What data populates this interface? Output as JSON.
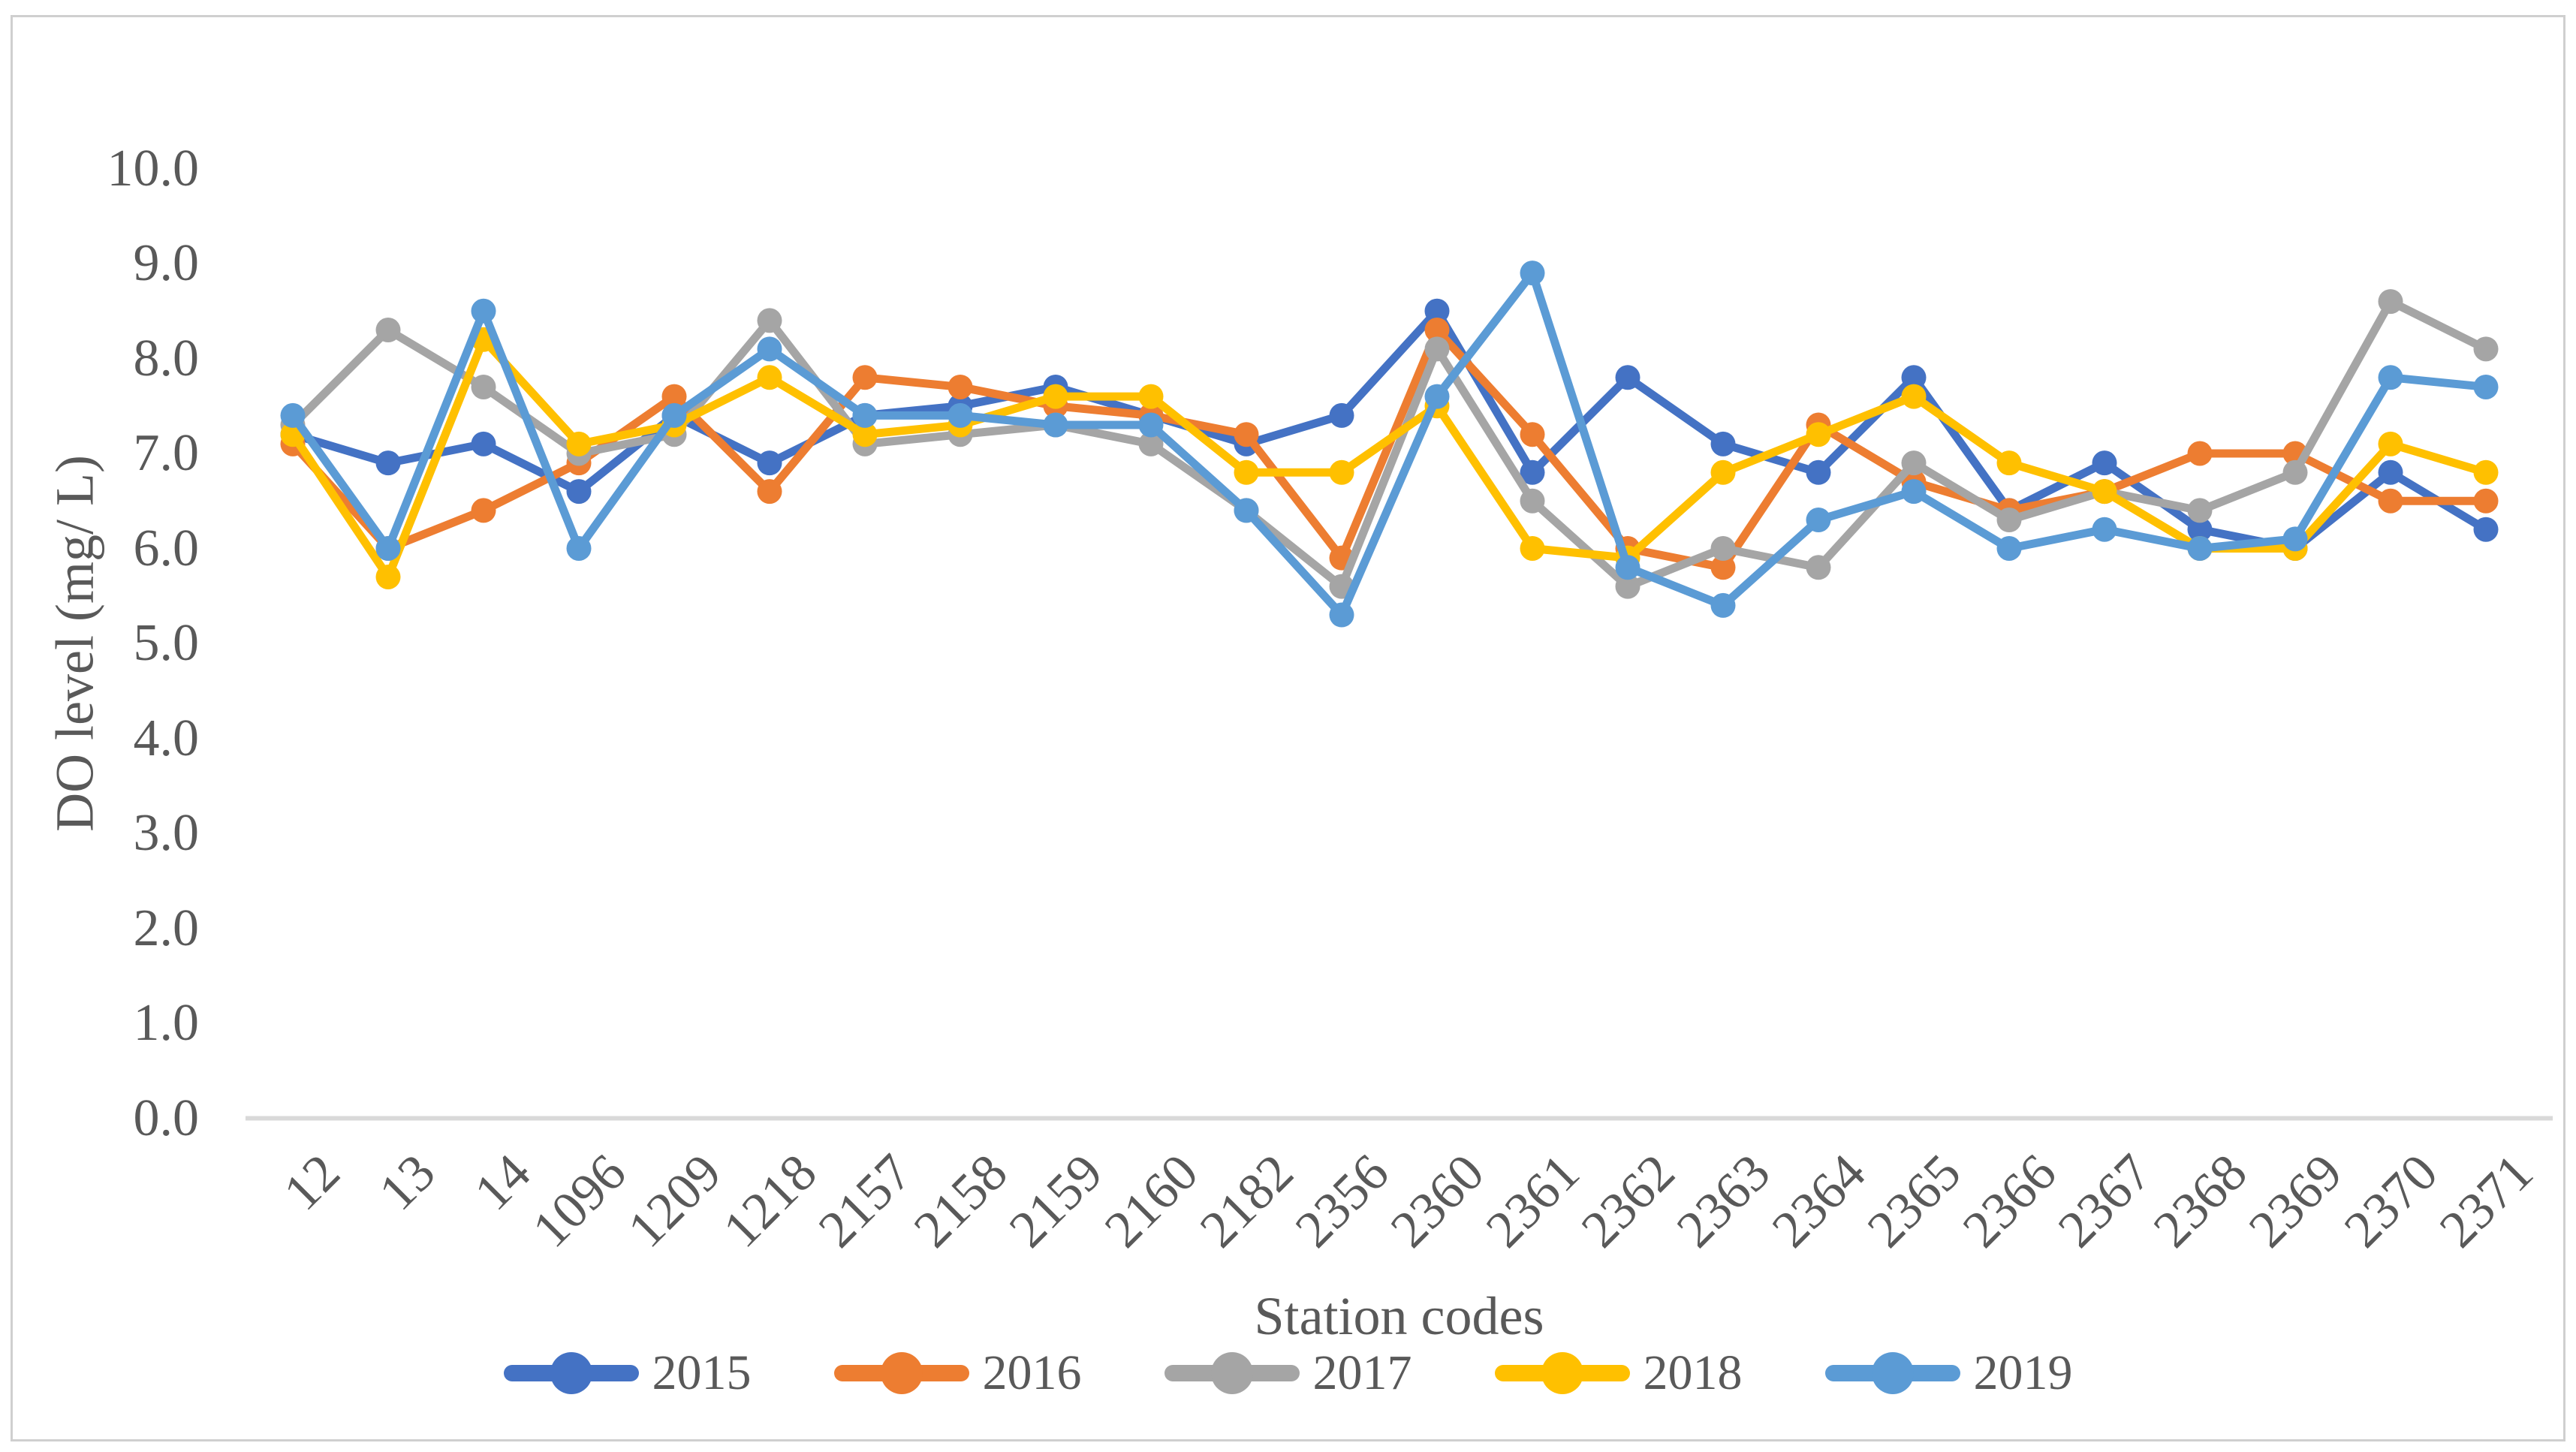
{
  "chart_data": {
    "type": "line",
    "title": "",
    "x_axis_title": "Station codes",
    "y_axis_title": "DO level (mg/ L)",
    "categories": [
      "12",
      "13",
      "14",
      "1096",
      "1209",
      "1218",
      "2157",
      "2158",
      "2159",
      "2160",
      "2182",
      "2356",
      "2360",
      "2361",
      "2362",
      "2363",
      "2364",
      "2365",
      "2366",
      "2367",
      "2368",
      "2369",
      "2370",
      "2371"
    ],
    "y_axis": {
      "min": 0,
      "max": 10,
      "step": 1,
      "tick_labels": [
        "0.0",
        "1.0",
        "2.0",
        "3.0",
        "4.0",
        "5.0",
        "6.0",
        "7.0",
        "8.0",
        "9.0",
        "10.0"
      ]
    },
    "grid": "off",
    "legend_position": "bottom",
    "series": [
      {
        "name": "2015",
        "color": "#4472C4",
        "values": [
          7.2,
          6.9,
          7.1,
          6.6,
          7.4,
          6.9,
          7.4,
          7.5,
          7.7,
          7.4,
          7.1,
          7.4,
          8.5,
          6.8,
          7.8,
          7.1,
          6.8,
          7.8,
          6.4,
          6.9,
          6.2,
          6.0,
          6.8,
          6.2
        ]
      },
      {
        "name": "2016",
        "color": "#ED7D31",
        "values": [
          7.1,
          6.0,
          6.4,
          6.9,
          7.6,
          6.6,
          7.8,
          7.7,
          7.5,
          7.4,
          7.2,
          5.9,
          8.3,
          7.2,
          6.0,
          5.8,
          7.3,
          6.7,
          6.4,
          6.6,
          7.0,
          7.0,
          6.5,
          6.5
        ]
      },
      {
        "name": "2017",
        "color": "#A5A5A5",
        "values": [
          7.3,
          8.3,
          7.7,
          7.0,
          7.2,
          8.4,
          7.1,
          7.2,
          7.3,
          7.1,
          6.4,
          5.6,
          8.1,
          6.5,
          5.6,
          6.0,
          5.8,
          6.9,
          6.3,
          6.6,
          6.4,
          6.8,
          8.6,
          8.1
        ]
      },
      {
        "name": "2018",
        "color": "#FFC000",
        "values": [
          7.2,
          5.7,
          8.2,
          7.1,
          7.3,
          7.8,
          7.2,
          7.3,
          7.6,
          7.6,
          6.8,
          6.8,
          7.5,
          6.0,
          5.9,
          6.8,
          7.2,
          7.6,
          6.9,
          6.6,
          6.0,
          6.0,
          7.1,
          6.8
        ]
      },
      {
        "name": "2019",
        "color": "#5B9BD5",
        "values": [
          7.4,
          6.0,
          8.5,
          6.0,
          7.4,
          8.1,
          7.4,
          7.4,
          7.3,
          7.3,
          6.4,
          5.3,
          7.6,
          8.9,
          5.8,
          5.4,
          6.3,
          6.6,
          6.0,
          6.2,
          6.0,
          6.1,
          7.8,
          7.7
        ]
      }
    ],
    "colors": {
      "text": "#595959",
      "axis_line": "#D9D9D9",
      "frame_border": "#CFCFCF"
    }
  }
}
